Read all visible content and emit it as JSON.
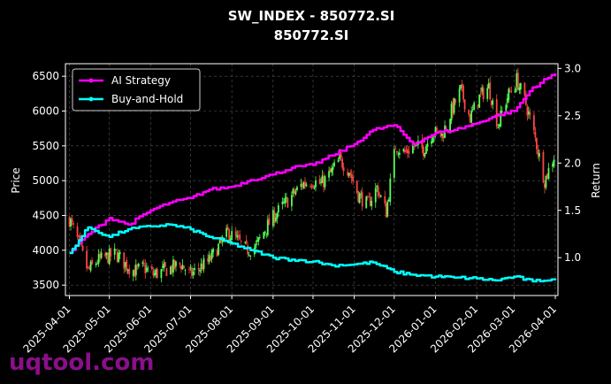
{
  "colors": {
    "strategy": "#ff00ff",
    "buy_hold": "#00ffff",
    "candle_up": "#55ff55",
    "candle_down": "#ff4444",
    "watermark": "#8a0f8a"
  },
  "watermark": "uqtool.com",
  "chart_data": {
    "type": "line",
    "title": "SW_INDEX - 850772.SI",
    "subtitle": "850772.SI",
    "ylabel_left": "Price",
    "ylabel_right": "Return",
    "x_ticks": [
      "2025-04-01",
      "2025-05-01",
      "2025-06-01",
      "2025-07-01",
      "2025-08-01",
      "2025-09-01",
      "2025-10-01",
      "2025-11-01",
      "2025-12-01",
      "2026-01-01",
      "2026-02-01",
      "2026-03-01",
      "2026-04-01"
    ],
    "y_left_ticks": [
      3500,
      4000,
      4500,
      5000,
      5500,
      6000,
      6500
    ],
    "y_left_range": [
      3350,
      6680
    ],
    "y_right_ticks": [
      "1.0",
      "1.5",
      "2.0",
      "2.5",
      "3.0"
    ],
    "y_right_range": [
      0.6,
      3.05
    ],
    "x_range": [
      "2025-03-29",
      "2026-04-03"
    ],
    "grid": true,
    "legend_position": "top-left",
    "price_candles": {
      "x": [
        "2025-04-01",
        "2025-04-08",
        "2025-04-15",
        "2025-04-22",
        "2025-04-29",
        "2025-05-06",
        "2025-05-13",
        "2025-05-20",
        "2025-05-27",
        "2025-06-03",
        "2025-06-10",
        "2025-06-17",
        "2025-06-24",
        "2025-07-01",
        "2025-07-08",
        "2025-07-15",
        "2025-07-22",
        "2025-07-29",
        "2025-08-05",
        "2025-08-12",
        "2025-08-19",
        "2025-08-26",
        "2025-09-02",
        "2025-09-09",
        "2025-09-16",
        "2025-09-23",
        "2025-09-30",
        "2025-10-07",
        "2025-10-14",
        "2025-10-21",
        "2025-10-28",
        "2025-11-04",
        "2025-11-11",
        "2025-11-18",
        "2025-11-25",
        "2025-12-02",
        "2025-12-09",
        "2025-12-16",
        "2025-12-23",
        "2025-12-30",
        "2026-01-06",
        "2026-01-13",
        "2026-01-20",
        "2026-01-27",
        "2026-02-03",
        "2026-02-10",
        "2026-02-17",
        "2026-02-24",
        "2026-03-03",
        "2026-03-10",
        "2026-03-17",
        "2026-03-24",
        "2026-03-31"
      ],
      "close": [
        4450,
        4100,
        3700,
        3850,
        3900,
        3950,
        3800,
        3700,
        3750,
        3650,
        3700,
        3750,
        3800,
        3650,
        3750,
        3850,
        4050,
        4250,
        4150,
        4000,
        4050,
        4300,
        4500,
        4650,
        4800,
        4950,
        5000,
        4950,
        5100,
        5300,
        5150,
        4800,
        4650,
        4900,
        4550,
        5500,
        5400,
        5500,
        5450,
        5700,
        5650,
        6000,
        6300,
        5900,
        6200,
        6350,
        5800,
        6200,
        6450,
        6100,
        5600,
        5000,
        5350
      ]
    },
    "series": [
      {
        "name": "AI Strategy",
        "x": [
          "2025-04-01",
          "2025-04-15",
          "2025-05-01",
          "2025-05-15",
          "2025-06-01",
          "2025-06-15",
          "2025-07-01",
          "2025-07-15",
          "2025-08-01",
          "2025-08-15",
          "2025-09-01",
          "2025-09-15",
          "2025-10-01",
          "2025-10-15",
          "2025-11-01",
          "2025-11-15",
          "2025-12-01",
          "2025-12-15",
          "2026-01-01",
          "2026-01-15",
          "2026-02-01",
          "2026-02-15",
          "2026-03-01",
          "2026-03-15",
          "2026-04-01"
        ],
        "values": [
          1.05,
          1.25,
          1.42,
          1.35,
          1.5,
          1.58,
          1.63,
          1.72,
          1.75,
          1.82,
          1.88,
          1.95,
          1.98,
          2.08,
          2.2,
          2.35,
          2.4,
          2.2,
          2.32,
          2.35,
          2.42,
          2.5,
          2.55,
          2.8,
          2.95
        ]
      },
      {
        "name": "Buy-and-Hold",
        "x": [
          "2025-04-01",
          "2025-04-15",
          "2025-05-01",
          "2025-05-15",
          "2025-06-01",
          "2025-06-15",
          "2025-07-01",
          "2025-07-15",
          "2025-08-01",
          "2025-08-15",
          "2025-09-01",
          "2025-09-15",
          "2025-10-01",
          "2025-10-15",
          "2025-11-01",
          "2025-11-15",
          "2025-12-01",
          "2025-12-15",
          "2026-01-01",
          "2026-01-15",
          "2026-02-01",
          "2026-02-15",
          "2026-03-01",
          "2026-03-15",
          "2026-04-01"
        ],
        "values": [
          1.05,
          1.32,
          1.22,
          1.3,
          1.33,
          1.35,
          1.3,
          1.22,
          1.15,
          1.08,
          1.0,
          0.98,
          0.96,
          0.92,
          0.93,
          0.95,
          0.85,
          0.82,
          0.8,
          0.79,
          0.78,
          0.76,
          0.8,
          0.75,
          0.78
        ]
      }
    ]
  }
}
